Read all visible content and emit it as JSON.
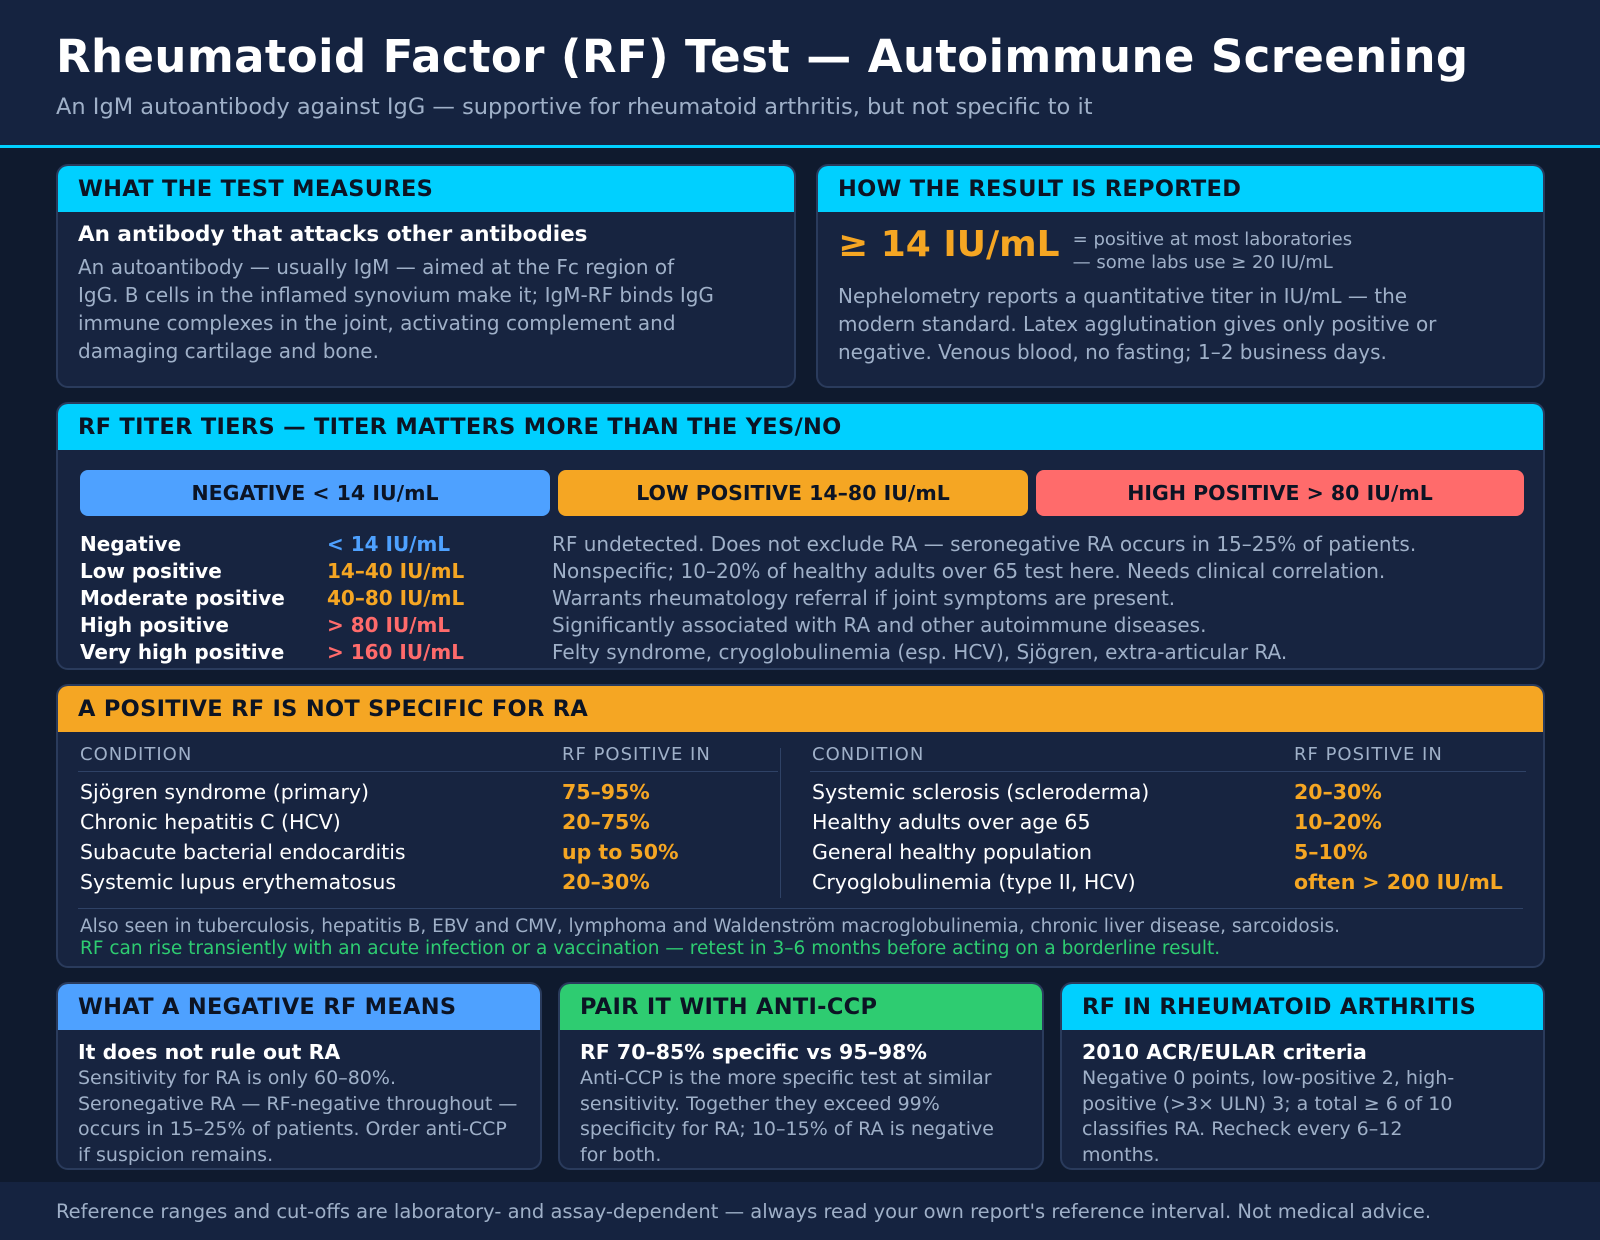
{
  "header": {
    "title": "Rheumatoid Factor (RF) Test — Autoimmune Screening",
    "subtitle": "An IgM autoantibody against IgG — supportive for rheumatoid arthritis, but not specific to it"
  },
  "measures": {
    "heading": "WHAT THE TEST MEASURES",
    "lead": "An antibody that attacks other antibodies",
    "text": "An autoantibody — usually IgM — aimed at the Fc region of IgG. B cells in the inflamed synovium make it; IgM-RF binds IgG immune complexes in the joint, activating complement and damaging cartilage and bone."
  },
  "reported": {
    "heading": "HOW THE RESULT IS REPORTED",
    "value": "≥ 14 IU/mL",
    "note_line1": "= positive at most laboratories",
    "note_line2": "— some labs use ≥ 20 IU/mL",
    "text": "Nephelometry reports a quantitative titer in IU/mL — the modern standard. Latex agglutination gives only positive or negative. Venous blood, no fasting; 1–2 business days."
  },
  "tiers": {
    "heading": "RF TITER TIERS — TITER MATTERS MORE THAN THE YES/NO",
    "buttons": {
      "negative": "NEGATIVE < 14 IU/mL",
      "low": "LOW POSITIVE 14–80 IU/mL",
      "high": "HIGH POSITIVE > 80 IU/mL"
    },
    "rows": [
      {
        "name": "Negative",
        "value": "< 14 IU/mL",
        "desc": "RF undetected. Does not exclude RA — seronegative RA occurs in 15–25% of patients."
      },
      {
        "name": "Low positive",
        "value": "14–40 IU/mL",
        "desc": "Nonspecific; 10–20% of healthy adults over 65 test here. Needs clinical correlation."
      },
      {
        "name": "Moderate positive",
        "value": "40–80 IU/mL",
        "desc": "Warrants rheumatology referral if joint symptoms are present."
      },
      {
        "name": "High positive",
        "value": "> 80 IU/mL",
        "desc": "Significantly associated with RA and other autoimmune diseases."
      },
      {
        "name": "Very high positive",
        "value": "> 160 IU/mL",
        "desc": "Felty syndrome, cryoglobulinemia (esp. HCV), Sjögren, extra-articular RA."
      }
    ]
  },
  "specificity": {
    "heading": "A POSITIVE RF IS NOT SPECIFIC FOR RA",
    "col_condition": "CONDITION",
    "col_positive": "RF POSITIVE IN",
    "left": [
      {
        "condition": "Sjögren syndrome (primary)",
        "pct": "75–95%"
      },
      {
        "condition": "Chronic hepatitis C (HCV)",
        "pct": "20–75%"
      },
      {
        "condition": "Subacute bacterial endocarditis",
        "pct": "up to 50%"
      },
      {
        "condition": "Systemic lupus erythematosus",
        "pct": "20–30%"
      }
    ],
    "right": [
      {
        "condition": "Systemic sclerosis (scleroderma)",
        "pct": "20–30%"
      },
      {
        "condition": "Healthy adults over age 65",
        "pct": "10–20%"
      },
      {
        "condition": "General healthy population",
        "pct": "5–10%"
      },
      {
        "condition": "Cryoglobulinemia (type II, HCV)",
        "pct": "often > 200 IU/mL"
      }
    ],
    "note1": "Also seen in tuberculosis, hepatitis B, EBV and CMV, lymphoma and Waldenström macroglobulinemia, chronic liver disease, sarcoidosis.",
    "note2": "RF can rise transiently with an acute infection or a vaccination — retest in 3–6 months before acting on a borderline result."
  },
  "negative": {
    "heading": "WHAT A NEGATIVE RF MEANS",
    "lead": "It does not rule out RA",
    "text": "Sensitivity for RA is only 60–80%. Seronegative RA — RF-negative throughout — occurs in 15–25% of patients. Order anti-CCP if suspicion remains."
  },
  "anticcp": {
    "heading": "PAIR IT WITH ANTI-CCP",
    "lead": "RF 70–85% specific vs 95–98%",
    "text": "Anti-CCP is the more specific test at similar sensitivity. Together they exceed 99% specificity for RA; 10–15% of RA is negative for both."
  },
  "ra": {
    "heading": "RF IN RHEUMATOID ARTHRITIS",
    "lead": "2010 ACR/EULAR criteria",
    "text": "Negative 0 points, low-positive 2, high-positive (>3× ULN) 3; a total ≥ 6 of 10 classifies RA. Recheck every 6–12 months."
  },
  "footer": {
    "text": "Reference ranges and cut-offs are laboratory- and assay-dependent — always read your own report's reference interval. Not medical advice."
  }
}
